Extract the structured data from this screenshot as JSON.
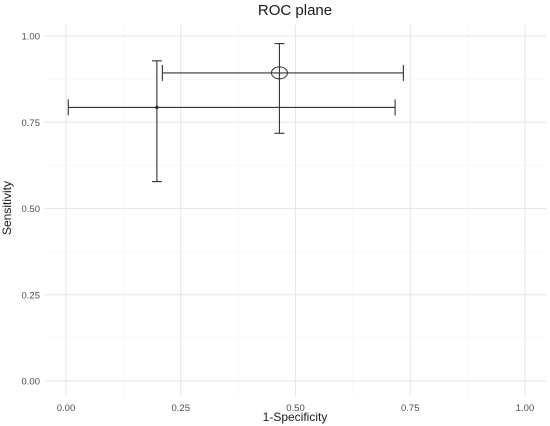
{
  "chart_data": {
    "type": "scatter",
    "title": "ROC plane",
    "xlabel": "1-Specificity",
    "ylabel": "Sensitivity",
    "xlim": [
      0,
      1
    ],
    "ylim": [
      0,
      1
    ],
    "x_ticks": [
      "0.00",
      "0.25",
      "0.50",
      "0.75",
      "1.00"
    ],
    "y_ticks": [
      "0.00",
      "0.25",
      "0.50",
      "0.75",
      "1.00"
    ],
    "grid": true,
    "points": [
      {
        "x": 0.465,
        "y": 0.893,
        "x_low": 0.21,
        "x_high": 0.735,
        "y_low": 0.718,
        "y_high": 0.978,
        "marker": "open-circle"
      },
      {
        "x": 0.198,
        "y": 0.793,
        "x_low": 0.005,
        "x_high": 0.717,
        "y_low": 0.578,
        "y_high": 0.928,
        "marker": "dot"
      }
    ]
  },
  "colors": {
    "grid_major": "#e6e6e6",
    "grid_minor": "#f2f2f2",
    "marks": "#333333"
  }
}
